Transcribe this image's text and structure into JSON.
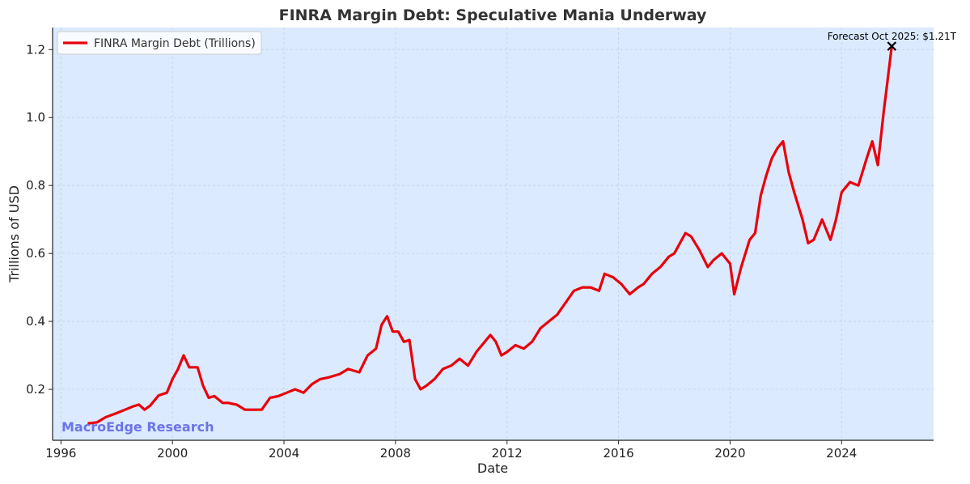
{
  "colors": {
    "plot_background": "#dbeafe",
    "line": "#e8000b",
    "axis": "#222222",
    "grid": "#b8c8d8",
    "marker": "#000000",
    "watermark": "#6b74e8"
  },
  "watermark": "MacroEdge Research",
  "chart_data": {
    "type": "line",
    "title": "FINRA Margin Debt: Speculative Mania Underway",
    "xlabel": "Date",
    "ylabel": "Trillions of USD",
    "xlim": [
      1995.7,
      2027.3
    ],
    "ylim": [
      0.05,
      1.265
    ],
    "x_ticks": [
      1996,
      2000,
      2004,
      2008,
      2012,
      2016,
      2020,
      2024
    ],
    "y_ticks": [
      0.2,
      0.4,
      0.6,
      0.8,
      1.0,
      1.2
    ],
    "y_tick_labels": [
      "0.2",
      "0.4",
      "0.6",
      "0.8",
      "1.0",
      "1.2"
    ],
    "grid": true,
    "legend_position": "top-left",
    "series": [
      {
        "name": "FINRA Margin Debt (Trillions)",
        "x": [
          1997.0,
          1997.3,
          1997.6,
          1998.0,
          1998.3,
          1998.6,
          1998.8,
          1999.0,
          1999.2,
          1999.5,
          1999.8,
          2000.0,
          2000.2,
          2000.4,
          2000.6,
          2000.9,
          2001.1,
          2001.3,
          2001.5,
          2001.8,
          2002.0,
          2002.3,
          2002.6,
          2002.9,
          2003.2,
          2003.5,
          2003.8,
          2004.1,
          2004.4,
          2004.7,
          2005.0,
          2005.3,
          2005.6,
          2006.0,
          2006.3,
          2006.7,
          2007.0,
          2007.3,
          2007.5,
          2007.7,
          2007.9,
          2008.1,
          2008.3,
          2008.5,
          2008.7,
          2008.9,
          2009.1,
          2009.4,
          2009.7,
          2010.0,
          2010.3,
          2010.6,
          2010.9,
          2011.2,
          2011.4,
          2011.6,
          2011.8,
          2012.0,
          2012.3,
          2012.6,
          2012.9,
          2013.2,
          2013.5,
          2013.8,
          2014.1,
          2014.4,
          2014.7,
          2015.0,
          2015.3,
          2015.5,
          2015.8,
          2016.1,
          2016.4,
          2016.7,
          2016.9,
          2017.2,
          2017.5,
          2017.8,
          2018.0,
          2018.2,
          2018.4,
          2018.6,
          2018.9,
          2019.2,
          2019.4,
          2019.7,
          2020.0,
          2020.15,
          2020.4,
          2020.7,
          2020.9,
          2021.1,
          2021.3,
          2021.5,
          2021.7,
          2021.9,
          2022.1,
          2022.3,
          2022.6,
          2022.8,
          2023.0,
          2023.3,
          2023.6,
          2023.8,
          2024.0,
          2024.3,
          2024.6,
          2024.9,
          2025.1,
          2025.3,
          2025.5,
          2025.8
        ],
        "values": [
          0.1,
          0.103,
          0.118,
          0.13,
          0.14,
          0.15,
          0.155,
          0.14,
          0.152,
          0.182,
          0.19,
          0.23,
          0.26,
          0.3,
          0.265,
          0.265,
          0.21,
          0.175,
          0.18,
          0.16,
          0.16,
          0.155,
          0.14,
          0.14,
          0.14,
          0.175,
          0.18,
          0.19,
          0.2,
          0.19,
          0.215,
          0.23,
          0.235,
          0.245,
          0.26,
          0.25,
          0.3,
          0.32,
          0.39,
          0.415,
          0.37,
          0.37,
          0.34,
          0.345,
          0.23,
          0.2,
          0.21,
          0.23,
          0.26,
          0.27,
          0.29,
          0.27,
          0.31,
          0.34,
          0.36,
          0.34,
          0.3,
          0.31,
          0.33,
          0.32,
          0.34,
          0.38,
          0.4,
          0.42,
          0.455,
          0.49,
          0.5,
          0.5,
          0.49,
          0.54,
          0.53,
          0.51,
          0.48,
          0.5,
          0.51,
          0.54,
          0.56,
          0.59,
          0.6,
          0.63,
          0.66,
          0.65,
          0.61,
          0.56,
          0.58,
          0.6,
          0.57,
          0.48,
          0.56,
          0.64,
          0.66,
          0.77,
          0.83,
          0.88,
          0.91,
          0.93,
          0.84,
          0.78,
          0.7,
          0.63,
          0.64,
          0.7,
          0.64,
          0.7,
          0.78,
          0.81,
          0.8,
          0.88,
          0.93,
          0.86,
          1.01,
          1.21
        ]
      }
    ],
    "annotations": [
      {
        "text": "Forecast Oct 2025: $1.21T",
        "x": 2025.8,
        "y": 1.21
      }
    ]
  }
}
